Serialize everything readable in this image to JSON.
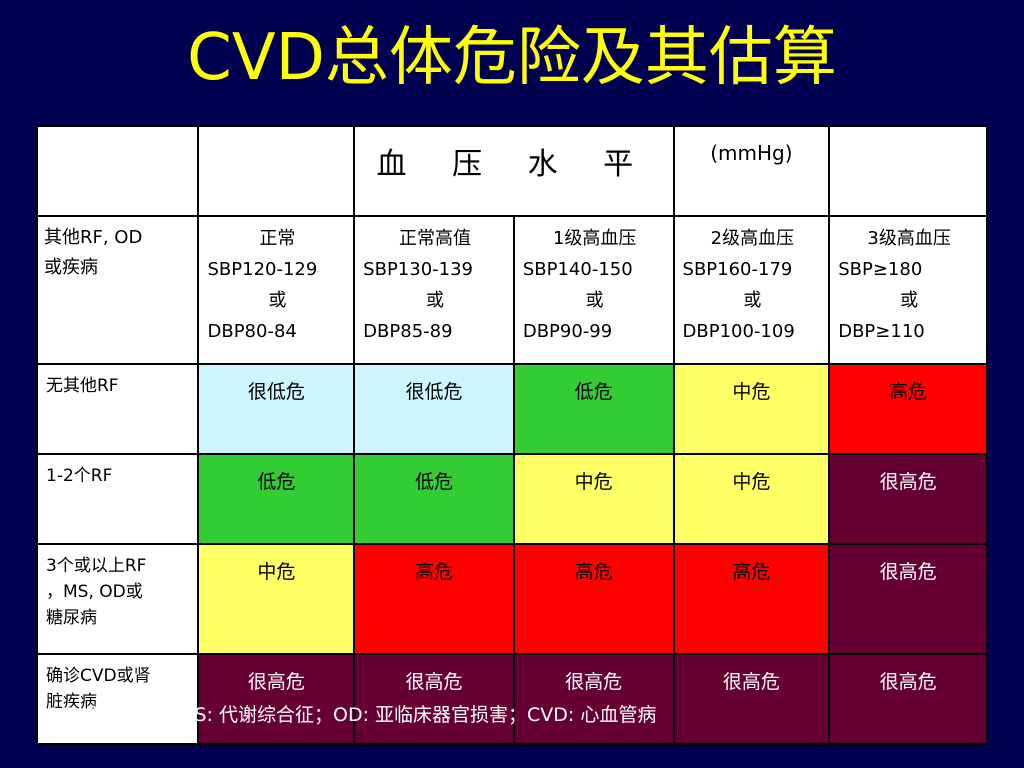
{
  "title": "CVD总体危险及其估算",
  "header": {
    "title": "血 压 水 平",
    "unit": "(mmHg)"
  },
  "bp_row": {
    "label_line1": "其他RF, OD",
    "label_line2": "或疾病",
    "levels": [
      {
        "name": "正常",
        "sbp": "SBP120-129",
        "or": "或",
        "dbp": "DBP80-84"
      },
      {
        "name": "正常高值",
        "sbp": "SBP130-139",
        "or": "或",
        "dbp": "DBP85-89"
      },
      {
        "name": "1级高血压",
        "sbp": "SBP140-150",
        "or": "或",
        "dbp": "DBP90-99"
      },
      {
        "name": "2级高血压",
        "sbp": "SBP160-179",
        "or": "或",
        "dbp": "DBP100-109"
      },
      {
        "name": "3级高血压",
        "sbp": "SBP≥180",
        "or": "或",
        "dbp": "DBP≥110"
      }
    ]
  },
  "rows": [
    {
      "label": "无其他RF",
      "cells": [
        "很低危",
        "很低危",
        "低危",
        "中危",
        "高危"
      ]
    },
    {
      "label": "1-2个RF",
      "cells": [
        "低危",
        "低危",
        "中危",
        "中危",
        "很高危"
      ]
    },
    {
      "label_line1": "3个或以上RF",
      "label_line2": "，MS, OD或",
      "label_line3": "糖尿病",
      "cells": [
        "中危",
        "高危",
        "高危",
        "高危",
        "很高危"
      ]
    },
    {
      "label_line1": "确诊CVD或肾",
      "label_line2": "脏疾病",
      "cells": [
        "很高危",
        "很高危",
        "很高危",
        "很高危",
        "很高危"
      ]
    }
  ],
  "risk_colors": {
    "很低危": "#ccf5ff",
    "低危": "#33cc33",
    "中危": "#ffff66",
    "高危": "#ff0000",
    "很高危": "#660033"
  },
  "footnote": "RF: 危险因素；MS: 代谢综合征；OD: 亚临床器官损害；CVD: 心血管病"
}
